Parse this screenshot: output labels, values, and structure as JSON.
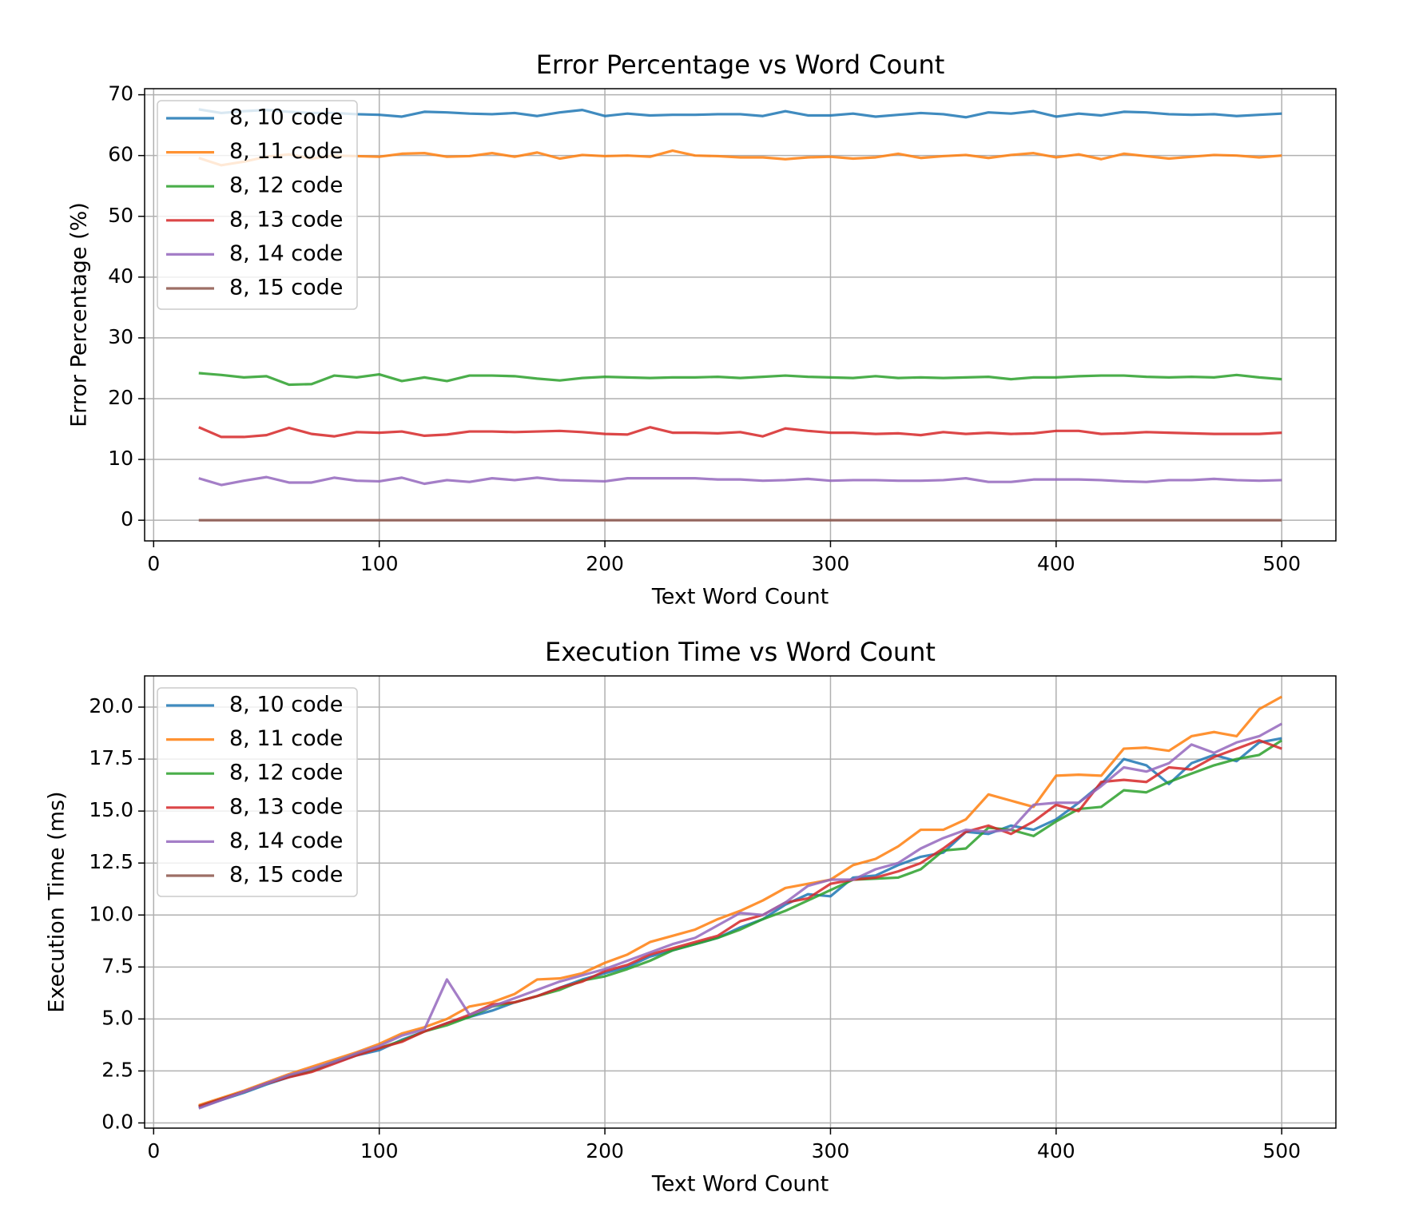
{
  "chart_data": [
    {
      "type": "line",
      "title": "Error Percentage vs Word Count",
      "xlabel": "Text Word Count",
      "ylabel": "Error Percentage (%)",
      "x": [
        20,
        30,
        40,
        50,
        60,
        70,
        80,
        90,
        100,
        110,
        120,
        130,
        140,
        150,
        160,
        170,
        180,
        190,
        200,
        210,
        220,
        230,
        240,
        250,
        260,
        270,
        280,
        290,
        300,
        310,
        320,
        330,
        340,
        350,
        360,
        370,
        380,
        390,
        400,
        410,
        420,
        430,
        440,
        450,
        460,
        470,
        480,
        490,
        500
      ],
      "xlim": [
        -4,
        524
      ],
      "xticks": [
        0,
        100,
        200,
        300,
        400,
        500
      ],
      "ylim": [
        -3.4,
        71
      ],
      "yticks": [
        0,
        10,
        20,
        30,
        40,
        50,
        60,
        70
      ],
      "grid": true,
      "legend": "upper left",
      "series": [
        {
          "name": "8, 10 code",
          "color": "#1f77b4",
          "values": [
            67.6,
            67.0,
            67.3,
            67.5,
            67.2,
            67.0,
            67.0,
            66.8,
            66.7,
            66.4,
            67.2,
            67.1,
            66.9,
            66.8,
            67.0,
            66.5,
            67.1,
            67.5,
            66.5,
            66.9,
            66.6,
            66.7,
            66.7,
            66.8,
            66.8,
            66.5,
            67.3,
            66.6,
            66.6,
            66.9,
            66.4,
            66.7,
            67.0,
            66.8,
            66.3,
            67.1,
            66.9,
            67.3,
            66.4,
            66.9,
            66.6,
            67.2,
            67.1,
            66.8,
            66.7,
            66.8,
            66.5,
            66.7,
            66.9
          ]
        },
        {
          "name": "8, 11 code",
          "color": "#ff7f0e",
          "values": [
            59.6,
            58.4,
            59.0,
            59.8,
            60.2,
            59.5,
            60.0,
            59.9,
            59.8,
            60.3,
            60.4,
            59.8,
            59.9,
            60.4,
            59.8,
            60.5,
            59.5,
            60.1,
            59.9,
            60.0,
            59.8,
            60.8,
            60.0,
            59.9,
            59.7,
            59.7,
            59.4,
            59.7,
            59.8,
            59.5,
            59.7,
            60.3,
            59.6,
            59.9,
            60.1,
            59.6,
            60.1,
            60.4,
            59.7,
            60.2,
            59.4,
            60.3,
            59.9,
            59.5,
            59.8,
            60.1,
            60.0,
            59.7,
            60.0
          ]
        },
        {
          "name": "8, 12 code",
          "color": "#2ca02c",
          "values": [
            24.2,
            23.9,
            23.5,
            23.7,
            22.3,
            22.4,
            23.8,
            23.5,
            24.0,
            22.9,
            23.5,
            22.9,
            23.8,
            23.8,
            23.7,
            23.3,
            23.0,
            23.4,
            23.6,
            23.5,
            23.4,
            23.5,
            23.5,
            23.6,
            23.4,
            23.6,
            23.8,
            23.6,
            23.5,
            23.4,
            23.7,
            23.4,
            23.5,
            23.4,
            23.5,
            23.6,
            23.2,
            23.5,
            23.5,
            23.7,
            23.8,
            23.8,
            23.6,
            23.5,
            23.6,
            23.5,
            23.9,
            23.5,
            23.2
          ]
        },
        {
          "name": "8, 13 code",
          "color": "#d62728",
          "values": [
            15.3,
            13.7,
            13.7,
            14.0,
            15.2,
            14.2,
            13.8,
            14.5,
            14.4,
            14.6,
            13.9,
            14.1,
            14.6,
            14.6,
            14.5,
            14.6,
            14.7,
            14.5,
            14.2,
            14.1,
            15.3,
            14.4,
            14.4,
            14.3,
            14.5,
            13.8,
            15.1,
            14.7,
            14.4,
            14.4,
            14.2,
            14.3,
            14.0,
            14.5,
            14.2,
            14.4,
            14.2,
            14.3,
            14.7,
            14.7,
            14.2,
            14.3,
            14.5,
            14.4,
            14.3,
            14.2,
            14.2,
            14.2,
            14.4
          ]
        },
        {
          "name": "8, 14 code",
          "color": "#9467bd",
          "values": [
            6.9,
            5.8,
            6.5,
            7.1,
            6.2,
            6.2,
            7.0,
            6.5,
            6.4,
            7.0,
            6.0,
            6.6,
            6.3,
            6.9,
            6.6,
            7.0,
            6.6,
            6.5,
            6.4,
            6.9,
            6.9,
            6.9,
            6.9,
            6.7,
            6.7,
            6.5,
            6.6,
            6.8,
            6.5,
            6.6,
            6.6,
            6.5,
            6.5,
            6.6,
            6.9,
            6.3,
            6.3,
            6.7,
            6.7,
            6.7,
            6.6,
            6.4,
            6.3,
            6.6,
            6.6,
            6.8,
            6.6,
            6.5,
            6.6
          ]
        },
        {
          "name": "8, 15 code",
          "color": "#8c564b",
          "values": [
            0,
            0,
            0,
            0,
            0,
            0,
            0,
            0,
            0,
            0,
            0,
            0,
            0,
            0,
            0,
            0,
            0,
            0,
            0,
            0,
            0,
            0,
            0,
            0,
            0,
            0,
            0,
            0,
            0,
            0,
            0,
            0,
            0,
            0,
            0,
            0,
            0,
            0,
            0,
            0,
            0,
            0,
            0,
            0,
            0,
            0,
            0,
            0,
            0
          ]
        }
      ]
    },
    {
      "type": "line",
      "title": "Execution Time vs Word Count",
      "xlabel": "Text Word Count",
      "ylabel": "Execution Time (ms)",
      "x": [
        20,
        30,
        40,
        50,
        60,
        70,
        80,
        90,
        100,
        110,
        120,
        130,
        140,
        150,
        160,
        170,
        180,
        190,
        200,
        210,
        220,
        230,
        240,
        250,
        260,
        270,
        280,
        290,
        300,
        310,
        320,
        330,
        340,
        350,
        360,
        370,
        380,
        390,
        400,
        410,
        420,
        430,
        440,
        450,
        460,
        470,
        480,
        490,
        500
      ],
      "xlim": [
        -4,
        524
      ],
      "xticks": [
        0,
        100,
        200,
        300,
        400,
        500
      ],
      "ylim": [
        -0.25,
        21.5
      ],
      "yticks": [
        {
          "value": 0,
          "label": "0.0"
        },
        {
          "value": 2.5,
          "label": "2.5"
        },
        {
          "value": 5,
          "label": "5.0"
        },
        {
          "value": 7.5,
          "label": "7.5"
        },
        {
          "value": 10,
          "label": "10.0"
        },
        {
          "value": 12.5,
          "label": "12.5"
        },
        {
          "value": 15,
          "label": "15.0"
        },
        {
          "value": 17.5,
          "label": "17.5"
        },
        {
          "value": 20,
          "label": "20.0"
        }
      ],
      "grid": true,
      "legend": "upper left",
      "series": [
        {
          "name": "8, 10 code",
          "color": "#1f77b4",
          "values": [
            0.75,
            1.1,
            1.45,
            1.85,
            2.2,
            2.5,
            2.9,
            3.25,
            3.5,
            4.0,
            4.4,
            4.8,
            5.1,
            5.4,
            5.8,
            6.1,
            6.5,
            6.9,
            7.2,
            7.5,
            8.0,
            8.3,
            8.6,
            8.9,
            9.4,
            9.8,
            10.5,
            11.0,
            10.9,
            11.8,
            11.9,
            12.4,
            12.8,
            13.0,
            14.0,
            13.9,
            14.3,
            14.1,
            14.6,
            15.4,
            16.3,
            17.5,
            17.2,
            16.3,
            17.3,
            17.7,
            17.4,
            18.3,
            18.5
          ]
        },
        {
          "name": "8, 11 code",
          "color": "#ff7f0e",
          "values": [
            0.85,
            1.2,
            1.55,
            1.95,
            2.35,
            2.7,
            3.05,
            3.4,
            3.8,
            4.3,
            4.6,
            5.0,
            5.6,
            5.8,
            6.2,
            6.9,
            6.95,
            7.2,
            7.7,
            8.1,
            8.7,
            9.0,
            9.3,
            9.8,
            10.2,
            10.7,
            11.3,
            11.5,
            11.7,
            12.4,
            12.7,
            13.3,
            14.1,
            14.1,
            14.6,
            15.8,
            15.5,
            15.2,
            16.7,
            16.75,
            16.7,
            18.0,
            18.05,
            17.9,
            18.6,
            18.8,
            18.6,
            19.9,
            20.5
          ]
        },
        {
          "name": "8, 12 code",
          "color": "#2ca02c",
          "values": [
            0.8,
            1.15,
            1.5,
            1.9,
            2.25,
            2.5,
            2.95,
            3.3,
            3.6,
            3.95,
            4.4,
            4.7,
            5.1,
            5.6,
            5.8,
            6.1,
            6.4,
            6.85,
            7.05,
            7.4,
            7.8,
            8.3,
            8.6,
            8.9,
            9.3,
            9.8,
            10.2,
            10.7,
            11.2,
            11.7,
            11.75,
            11.8,
            12.2,
            13.1,
            13.2,
            14.2,
            14.1,
            13.8,
            14.5,
            15.1,
            15.2,
            16.0,
            15.9,
            16.4,
            16.8,
            17.2,
            17.5,
            17.7,
            18.4
          ]
        },
        {
          "name": "8, 13 code",
          "color": "#d62728",
          "values": [
            0.8,
            1.15,
            1.5,
            1.9,
            2.2,
            2.45,
            2.85,
            3.25,
            3.6,
            3.9,
            4.4,
            4.8,
            5.2,
            5.7,
            5.8,
            6.1,
            6.5,
            6.8,
            7.3,
            7.6,
            8.1,
            8.4,
            8.7,
            9.0,
            9.7,
            10.0,
            10.6,
            10.8,
            11.5,
            11.7,
            11.8,
            12.1,
            12.5,
            13.2,
            14.0,
            14.3,
            13.9,
            14.5,
            15.3,
            15.0,
            16.4,
            16.5,
            16.4,
            17.1,
            17.0,
            17.6,
            18.0,
            18.4,
            18.0
          ]
        },
        {
          "name": "8, 14 code",
          "color": "#9467bd",
          "values": [
            0.7,
            1.1,
            1.5,
            1.9,
            2.3,
            2.6,
            2.95,
            3.35,
            3.7,
            4.2,
            4.5,
            6.9,
            5.2,
            5.6,
            6.0,
            6.4,
            6.8,
            7.1,
            7.4,
            7.8,
            8.2,
            8.6,
            8.9,
            9.5,
            10.1,
            10.0,
            10.6,
            11.4,
            11.7,
            11.7,
            12.2,
            12.5,
            13.2,
            13.7,
            14.1,
            14.0,
            14.1,
            15.3,
            15.4,
            15.4,
            16.2,
            17.1,
            16.9,
            17.3,
            18.2,
            17.8,
            18.3,
            18.6,
            19.2
          ]
        },
        {
          "name": "8, 15 code",
          "color": "#8c564b",
          "values": [
            null,
            null,
            null,
            null,
            null,
            null,
            null,
            null,
            null,
            null,
            null,
            null,
            null,
            null,
            null,
            null,
            null,
            null,
            null,
            null,
            null,
            null,
            null,
            null,
            null,
            null,
            null,
            null,
            null,
            null,
            null,
            null,
            null,
            null,
            null,
            null,
            null,
            null,
            null,
            null,
            null,
            null,
            null,
            null,
            null,
            null,
            null,
            null,
            null
          ]
        }
      ]
    }
  ]
}
